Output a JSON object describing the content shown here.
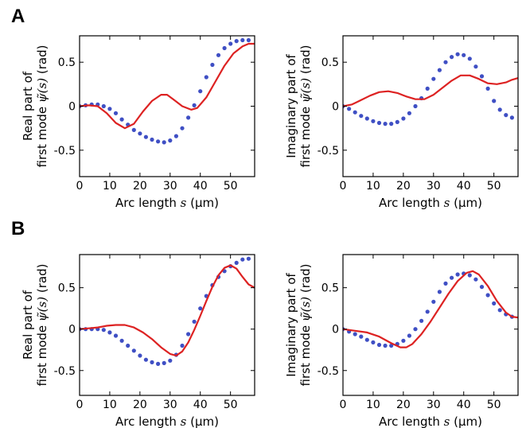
{
  "panels": [
    {
      "letter": "A"
    },
    {
      "letter": "B"
    }
  ],
  "chart_data": [
    {
      "type": "line",
      "panel": "A",
      "ylabel_line1": "Real part of",
      "ylabel_line2_prefix": "first mode ",
      "ylabel_symbol": "ψ̃(s)",
      "ylabel_unit": " (rad)",
      "xlabel_prefix": "Arc length ",
      "xlabel_var": "s",
      "xlabel_unit": " (μm)",
      "xlim": [
        0,
        58
      ],
      "ylim": [
        -0.8,
        0.8
      ],
      "xticks": [
        0,
        10,
        20,
        30,
        40,
        50
      ],
      "xtick_labels": [
        "0",
        "10",
        "20",
        "30",
        "40",
        "50"
      ],
      "yticks": [
        -0.5,
        0,
        0.5
      ],
      "ytick_labels": [
        "-0.5",
        "0",
        "0.5"
      ],
      "grid": false,
      "series": [
        {
          "style": "dots",
          "color": "#3f4fc4",
          "x": [
            0,
            2,
            4,
            6,
            8,
            10,
            12,
            14,
            16,
            18,
            20,
            22,
            24,
            26,
            28,
            30,
            32,
            34,
            36,
            38,
            40,
            42,
            44,
            46,
            48,
            50,
            52,
            54,
            56
          ],
          "y": [
            0,
            0.01,
            0.02,
            0.02,
            0,
            -0.03,
            -0.08,
            -0.15,
            -0.21,
            -0.27,
            -0.31,
            -0.35,
            -0.38,
            -0.4,
            -0.41,
            -0.39,
            -0.34,
            -0.25,
            -0.13,
            0.01,
            0.17,
            0.33,
            0.47,
            0.58,
            0.66,
            0.71,
            0.74,
            0.75,
            0.75
          ]
        },
        {
          "style": "line",
          "color": "#dd2222",
          "x": [
            0,
            3,
            6,
            9,
            12,
            15,
            18,
            21,
            24,
            27,
            29,
            31,
            34,
            37,
            39,
            42,
            45,
            48,
            51,
            54,
            56,
            58
          ],
          "y": [
            0,
            0.01,
            0,
            -0.08,
            -0.19,
            -0.25,
            -0.2,
            -0.06,
            0.06,
            0.13,
            0.13,
            0.08,
            0,
            -0.04,
            -0.02,
            0.1,
            0.28,
            0.46,
            0.6,
            0.68,
            0.71,
            0.71
          ]
        }
      ]
    },
    {
      "type": "line",
      "panel": "A",
      "ylabel_line1": "Imaginary part of",
      "ylabel_line2_prefix": "first mode ",
      "ylabel_symbol": "ψ̃(s)",
      "ylabel_unit": " (rad)",
      "xlabel_prefix": "Arc length ",
      "xlabel_var": "s",
      "xlabel_unit": " (μm)",
      "xlim": [
        0,
        58
      ],
      "ylim": [
        -0.8,
        0.8
      ],
      "xticks": [
        0,
        10,
        20,
        30,
        40,
        50
      ],
      "xtick_labels": [
        "0",
        "10",
        "20",
        "30",
        "40",
        "50"
      ],
      "yticks": [
        -0.5,
        0,
        0.5
      ],
      "ytick_labels": [
        "-0.5",
        "0",
        "0.5"
      ],
      "grid": false,
      "series": [
        {
          "style": "dots",
          "color": "#3f4fc4",
          "x": [
            0,
            2,
            4,
            6,
            8,
            10,
            12,
            14,
            16,
            18,
            20,
            22,
            24,
            26,
            28,
            30,
            32,
            34,
            36,
            38,
            40,
            42,
            44,
            46,
            48,
            50,
            52,
            54,
            56
          ],
          "y": [
            0,
            -0.03,
            -0.07,
            -0.11,
            -0.14,
            -0.17,
            -0.19,
            -0.2,
            -0.2,
            -0.18,
            -0.14,
            -0.08,
            0,
            0.09,
            0.2,
            0.31,
            0.41,
            0.5,
            0.56,
            0.59,
            0.58,
            0.54,
            0.45,
            0.34,
            0.2,
            0.06,
            -0.04,
            -0.1,
            -0.13
          ]
        },
        {
          "style": "line",
          "color": "#dd2222",
          "x": [
            0,
            3,
            6,
            9,
            12,
            15,
            18,
            21,
            24,
            27,
            30,
            33,
            36,
            39,
            42,
            45,
            48,
            51,
            54,
            56,
            58
          ],
          "y": [
            0,
            0.02,
            0.07,
            0.12,
            0.16,
            0.17,
            0.15,
            0.11,
            0.08,
            0.08,
            0.13,
            0.21,
            0.29,
            0.35,
            0.35,
            0.31,
            0.26,
            0.25,
            0.27,
            0.3,
            0.32
          ]
        }
      ]
    },
    {
      "type": "line",
      "panel": "B",
      "ylabel_line1": "Real part of",
      "ylabel_line2_prefix": "first mode ",
      "ylabel_symbol": "ψ̃(s)",
      "ylabel_unit": " (rad)",
      "xlabel_prefix": "Arc length ",
      "xlabel_var": "s",
      "xlabel_unit": " (μm)",
      "xlim": [
        0,
        58
      ],
      "ylim": [
        -0.8,
        0.9
      ],
      "xticks": [
        0,
        10,
        20,
        30,
        40,
        50
      ],
      "xtick_labels": [
        "0",
        "10",
        "20",
        "30",
        "40",
        "50"
      ],
      "yticks": [
        -0.5,
        0,
        0.5
      ],
      "ytick_labels": [
        "-0.5",
        "0",
        "0.5"
      ],
      "grid": false,
      "series": [
        {
          "style": "dots",
          "color": "#3f4fc4",
          "x": [
            0,
            2,
            4,
            6,
            8,
            10,
            12,
            14,
            16,
            18,
            20,
            22,
            24,
            26,
            28,
            30,
            32,
            34,
            36,
            38,
            40,
            42,
            44,
            46,
            48,
            50,
            52,
            54,
            56
          ],
          "y": [
            0,
            0,
            0,
            0,
            -0.01,
            -0.04,
            -0.08,
            -0.14,
            -0.2,
            -0.26,
            -0.32,
            -0.37,
            -0.4,
            -0.42,
            -0.41,
            -0.38,
            -0.31,
            -0.2,
            -0.06,
            0.09,
            0.25,
            0.4,
            0.53,
            0.63,
            0.7,
            0.76,
            0.8,
            0.84,
            0.85
          ]
        },
        {
          "style": "line",
          "color": "#dd2222",
          "x": [
            0,
            3,
            6,
            9,
            12,
            15,
            18,
            21,
            24,
            27,
            30,
            32,
            34,
            36,
            38,
            40,
            42,
            44,
            46,
            48,
            50,
            52,
            54,
            56,
            58
          ],
          "y": [
            0,
            0.01,
            0.02,
            0.04,
            0.05,
            0.05,
            0.02,
            -0.04,
            -0.12,
            -0.22,
            -0.3,
            -0.32,
            -0.27,
            -0.16,
            -0.01,
            0.16,
            0.34,
            0.51,
            0.65,
            0.74,
            0.77,
            0.73,
            0.63,
            0.54,
            0.5
          ]
        }
      ]
    },
    {
      "type": "line",
      "panel": "B",
      "ylabel_line1": "Imaginary part of",
      "ylabel_line2_prefix": "first mode ",
      "ylabel_symbol": "ψ̃(s)",
      "ylabel_unit": " (rad)",
      "xlabel_prefix": "Arc length ",
      "xlabel_var": "s",
      "xlabel_unit": " (μm)",
      "xlim": [
        0,
        58
      ],
      "ylim": [
        -0.8,
        0.9
      ],
      "xticks": [
        0,
        10,
        20,
        30,
        40,
        50
      ],
      "xtick_labels": [
        "0",
        "10",
        "20",
        "30",
        "40",
        "50"
      ],
      "yticks": [
        -0.5,
        0,
        0.5
      ],
      "ytick_labels": [
        "-0.5",
        "0",
        "0.5"
      ],
      "grid": false,
      "series": [
        {
          "style": "dots",
          "color": "#3f4fc4",
          "x": [
            0,
            2,
            4,
            6,
            8,
            10,
            12,
            14,
            16,
            18,
            20,
            22,
            24,
            26,
            28,
            30,
            32,
            34,
            36,
            38,
            40,
            42,
            44,
            46,
            48,
            50,
            52,
            54,
            56
          ],
          "y": [
            0,
            -0.03,
            -0.06,
            -0.09,
            -0.13,
            -0.16,
            -0.19,
            -0.2,
            -0.2,
            -0.18,
            -0.14,
            -0.08,
            0,
            0.1,
            0.21,
            0.33,
            0.45,
            0.55,
            0.62,
            0.66,
            0.67,
            0.65,
            0.6,
            0.51,
            0.41,
            0.31,
            0.23,
            0.18,
            0.15
          ]
        },
        {
          "style": "line",
          "color": "#dd2222",
          "x": [
            0,
            4,
            8,
            12,
            16,
            19,
            21,
            23,
            26,
            29,
            32,
            35,
            38,
            41,
            43,
            45,
            48,
            51,
            54,
            56,
            58
          ],
          "y": [
            0,
            -0.02,
            -0.04,
            -0.09,
            -0.17,
            -0.22,
            -0.22,
            -0.18,
            -0.06,
            0.09,
            0.26,
            0.43,
            0.58,
            0.68,
            0.7,
            0.66,
            0.52,
            0.34,
            0.2,
            0.15,
            0.14
          ]
        }
      ]
    }
  ]
}
